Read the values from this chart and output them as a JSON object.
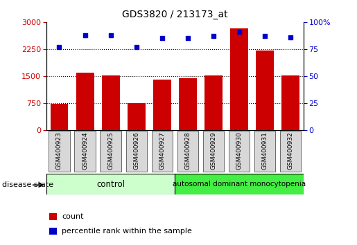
{
  "title": "GDS3820 / 213173_at",
  "samples": [
    "GSM400923",
    "GSM400924",
    "GSM400925",
    "GSM400926",
    "GSM400927",
    "GSM400928",
    "GSM400929",
    "GSM400930",
    "GSM400931",
    "GSM400932"
  ],
  "counts": [
    730,
    1590,
    1520,
    750,
    1390,
    1440,
    1510,
    2830,
    2210,
    1510
  ],
  "percentiles": [
    77,
    88,
    88,
    77,
    85,
    85,
    87,
    91,
    87,
    86
  ],
  "left_ylim": [
    0,
    3000
  ],
  "left_yticks": [
    0,
    750,
    1500,
    2250,
    3000
  ],
  "right_ylim": [
    0,
    100
  ],
  "right_yticks": [
    0,
    25,
    50,
    75,
    100
  ],
  "bar_color": "#cc0000",
  "scatter_color": "#0000cc",
  "control_color": "#ccffcc",
  "disease_color": "#44ee44",
  "grid_color": "#000000",
  "label_count": "count",
  "label_percentile": "percentile rank within the sample",
  "disease_state_label": "disease state",
  "control_label": "control",
  "disease_label": "autosomal dominant monocytopenia",
  "n_control": 5,
  "n_disease": 5
}
